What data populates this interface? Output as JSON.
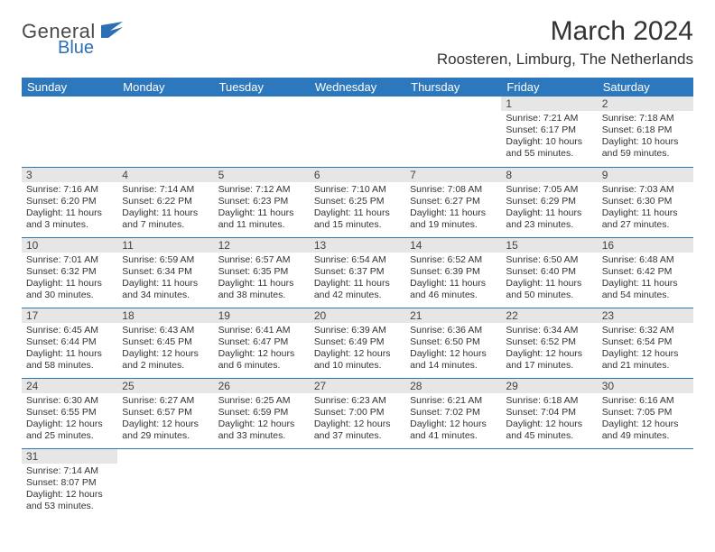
{
  "logo": {
    "text1": "General",
    "text2": "Blue",
    "text1_color": "#4a4a4a",
    "text2_color": "#2d6fb3",
    "icon_color": "#2d6fb3"
  },
  "title": "March 2024",
  "location": "Roosteren, Limburg, The Netherlands",
  "header_bg": "#2d78bd",
  "header_fg": "#ffffff",
  "daynum_bg": "#e6e6e6",
  "cell_border": "#2d78bd",
  "text_color": "#333333",
  "days_of_week": [
    "Sunday",
    "Monday",
    "Tuesday",
    "Wednesday",
    "Thursday",
    "Friday",
    "Saturday"
  ],
  "weeks": [
    [
      {
        "n": "",
        "lines": []
      },
      {
        "n": "",
        "lines": []
      },
      {
        "n": "",
        "lines": []
      },
      {
        "n": "",
        "lines": []
      },
      {
        "n": "",
        "lines": []
      },
      {
        "n": "1",
        "lines": [
          "Sunrise: 7:21 AM",
          "Sunset: 6:17 PM",
          "Daylight: 10 hours and 55 minutes."
        ]
      },
      {
        "n": "2",
        "lines": [
          "Sunrise: 7:18 AM",
          "Sunset: 6:18 PM",
          "Daylight: 10 hours and 59 minutes."
        ]
      }
    ],
    [
      {
        "n": "3",
        "lines": [
          "Sunrise: 7:16 AM",
          "Sunset: 6:20 PM",
          "Daylight: 11 hours and 3 minutes."
        ]
      },
      {
        "n": "4",
        "lines": [
          "Sunrise: 7:14 AM",
          "Sunset: 6:22 PM",
          "Daylight: 11 hours and 7 minutes."
        ]
      },
      {
        "n": "5",
        "lines": [
          "Sunrise: 7:12 AM",
          "Sunset: 6:23 PM",
          "Daylight: 11 hours and 11 minutes."
        ]
      },
      {
        "n": "6",
        "lines": [
          "Sunrise: 7:10 AM",
          "Sunset: 6:25 PM",
          "Daylight: 11 hours and 15 minutes."
        ]
      },
      {
        "n": "7",
        "lines": [
          "Sunrise: 7:08 AM",
          "Sunset: 6:27 PM",
          "Daylight: 11 hours and 19 minutes."
        ]
      },
      {
        "n": "8",
        "lines": [
          "Sunrise: 7:05 AM",
          "Sunset: 6:29 PM",
          "Daylight: 11 hours and 23 minutes."
        ]
      },
      {
        "n": "9",
        "lines": [
          "Sunrise: 7:03 AM",
          "Sunset: 6:30 PM",
          "Daylight: 11 hours and 27 minutes."
        ]
      }
    ],
    [
      {
        "n": "10",
        "lines": [
          "Sunrise: 7:01 AM",
          "Sunset: 6:32 PM",
          "Daylight: 11 hours and 30 minutes."
        ]
      },
      {
        "n": "11",
        "lines": [
          "Sunrise: 6:59 AM",
          "Sunset: 6:34 PM",
          "Daylight: 11 hours and 34 minutes."
        ]
      },
      {
        "n": "12",
        "lines": [
          "Sunrise: 6:57 AM",
          "Sunset: 6:35 PM",
          "Daylight: 11 hours and 38 minutes."
        ]
      },
      {
        "n": "13",
        "lines": [
          "Sunrise: 6:54 AM",
          "Sunset: 6:37 PM",
          "Daylight: 11 hours and 42 minutes."
        ]
      },
      {
        "n": "14",
        "lines": [
          "Sunrise: 6:52 AM",
          "Sunset: 6:39 PM",
          "Daylight: 11 hours and 46 minutes."
        ]
      },
      {
        "n": "15",
        "lines": [
          "Sunrise: 6:50 AM",
          "Sunset: 6:40 PM",
          "Daylight: 11 hours and 50 minutes."
        ]
      },
      {
        "n": "16",
        "lines": [
          "Sunrise: 6:48 AM",
          "Sunset: 6:42 PM",
          "Daylight: 11 hours and 54 minutes."
        ]
      }
    ],
    [
      {
        "n": "17",
        "lines": [
          "Sunrise: 6:45 AM",
          "Sunset: 6:44 PM",
          "Daylight: 11 hours and 58 minutes."
        ]
      },
      {
        "n": "18",
        "lines": [
          "Sunrise: 6:43 AM",
          "Sunset: 6:45 PM",
          "Daylight: 12 hours and 2 minutes."
        ]
      },
      {
        "n": "19",
        "lines": [
          "Sunrise: 6:41 AM",
          "Sunset: 6:47 PM",
          "Daylight: 12 hours and 6 minutes."
        ]
      },
      {
        "n": "20",
        "lines": [
          "Sunrise: 6:39 AM",
          "Sunset: 6:49 PM",
          "Daylight: 12 hours and 10 minutes."
        ]
      },
      {
        "n": "21",
        "lines": [
          "Sunrise: 6:36 AM",
          "Sunset: 6:50 PM",
          "Daylight: 12 hours and 14 minutes."
        ]
      },
      {
        "n": "22",
        "lines": [
          "Sunrise: 6:34 AM",
          "Sunset: 6:52 PM",
          "Daylight: 12 hours and 17 minutes."
        ]
      },
      {
        "n": "23",
        "lines": [
          "Sunrise: 6:32 AM",
          "Sunset: 6:54 PM",
          "Daylight: 12 hours and 21 minutes."
        ]
      }
    ],
    [
      {
        "n": "24",
        "lines": [
          "Sunrise: 6:30 AM",
          "Sunset: 6:55 PM",
          "Daylight: 12 hours and 25 minutes."
        ]
      },
      {
        "n": "25",
        "lines": [
          "Sunrise: 6:27 AM",
          "Sunset: 6:57 PM",
          "Daylight: 12 hours and 29 minutes."
        ]
      },
      {
        "n": "26",
        "lines": [
          "Sunrise: 6:25 AM",
          "Sunset: 6:59 PM",
          "Daylight: 12 hours and 33 minutes."
        ]
      },
      {
        "n": "27",
        "lines": [
          "Sunrise: 6:23 AM",
          "Sunset: 7:00 PM",
          "Daylight: 12 hours and 37 minutes."
        ]
      },
      {
        "n": "28",
        "lines": [
          "Sunrise: 6:21 AM",
          "Sunset: 7:02 PM",
          "Daylight: 12 hours and 41 minutes."
        ]
      },
      {
        "n": "29",
        "lines": [
          "Sunrise: 6:18 AM",
          "Sunset: 7:04 PM",
          "Daylight: 12 hours and 45 minutes."
        ]
      },
      {
        "n": "30",
        "lines": [
          "Sunrise: 6:16 AM",
          "Sunset: 7:05 PM",
          "Daylight: 12 hours and 49 minutes."
        ]
      }
    ],
    [
      {
        "n": "31",
        "lines": [
          "Sunrise: 7:14 AM",
          "Sunset: 8:07 PM",
          "Daylight: 12 hours and 53 minutes."
        ]
      },
      {
        "n": "",
        "lines": []
      },
      {
        "n": "",
        "lines": []
      },
      {
        "n": "",
        "lines": []
      },
      {
        "n": "",
        "lines": []
      },
      {
        "n": "",
        "lines": []
      },
      {
        "n": "",
        "lines": []
      }
    ]
  ]
}
